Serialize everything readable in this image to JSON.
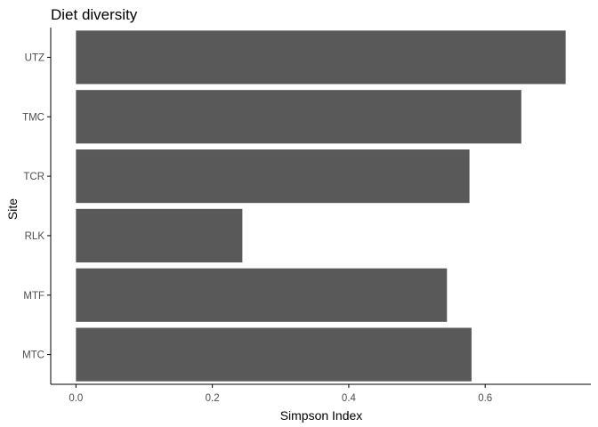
{
  "chart_data": {
    "type": "bar",
    "orientation": "horizontal",
    "title": "Diet diversity",
    "xlabel": "Simpson Index",
    "ylabel": "Site",
    "categories": [
      "MTC",
      "MTF",
      "RLK",
      "TCR",
      "TMC",
      "UTZ"
    ],
    "values": [
      0.58,
      0.544,
      0.244,
      0.577,
      0.653,
      0.718
    ],
    "xlim": [
      -0.037,
      0.755
    ],
    "xticks": [
      0.0,
      0.2,
      0.4,
      0.6
    ],
    "xtick_labels": [
      "0.0",
      "0.2",
      "0.4",
      "0.6"
    ],
    "grid": false,
    "legend": "none",
    "bar_color": "#595959",
    "axis_color": "#000000",
    "tick_label_color": "#4d4d4d"
  }
}
